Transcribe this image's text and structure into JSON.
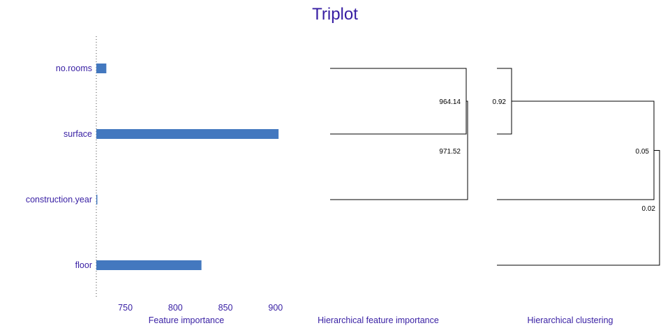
{
  "title": "Triplot",
  "colors": {
    "title": "#371ea3",
    "bar": "#4378bf",
    "text": "#371ea3",
    "dendro": "#000000"
  },
  "chart_data": [
    {
      "type": "bar",
      "orientation": "horizontal",
      "xlabel": "Feature importance",
      "categories": [
        "no.rooms",
        "surface",
        "construction.year",
        "floor"
      ],
      "values": [
        731,
        903,
        722,
        826
      ],
      "xlim": [
        721,
        905
      ],
      "xticks": [
        750,
        800,
        850,
        900
      ],
      "baseline": 721
    },
    {
      "type": "dendrogram",
      "xlabel": "Hierarchical feature importance",
      "leaves": [
        "no.rooms",
        "surface",
        "construction.year"
      ],
      "merges": [
        {
          "label": "964.14",
          "height": 964.14
        },
        {
          "label": "971.52",
          "height": 971.52
        }
      ]
    },
    {
      "type": "dendrogram",
      "xlabel": "Hierarchical clustering",
      "leaves": [
        "no.rooms",
        "surface",
        "construction.year",
        "floor"
      ],
      "merges": [
        {
          "label": "0.92",
          "height": 0.92
        },
        {
          "label": "0.05",
          "height": 0.05
        },
        {
          "label": "0.02",
          "height": 0.02
        }
      ]
    }
  ]
}
